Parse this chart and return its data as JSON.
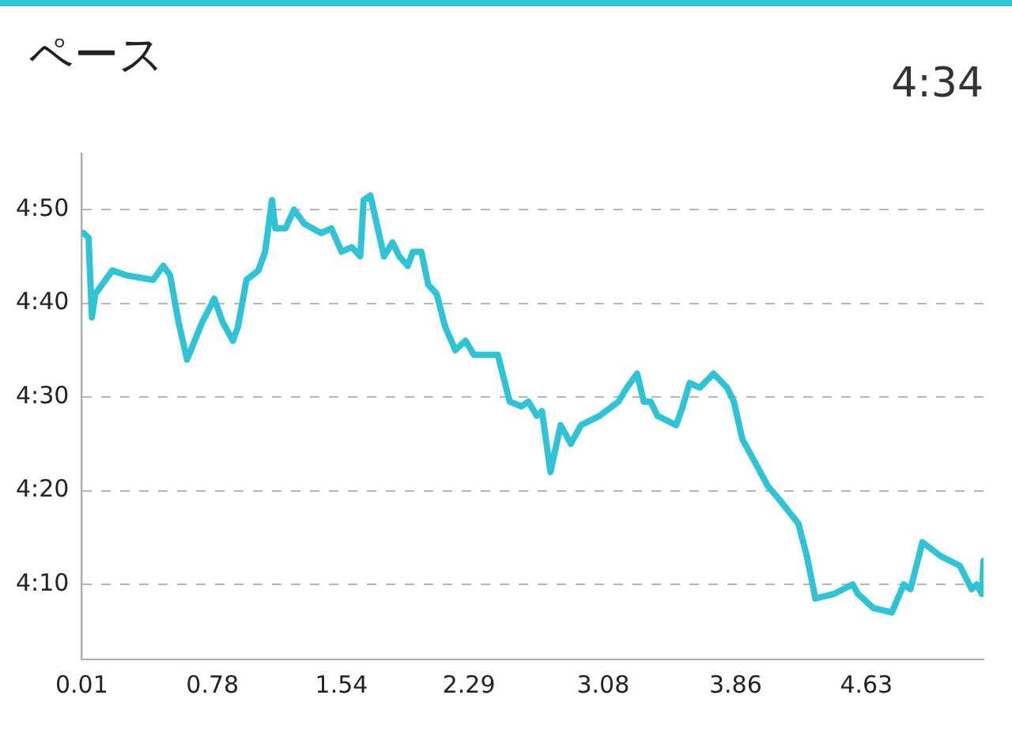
{
  "chart_data": {
    "type": "line",
    "title": "ペース",
    "subtitle": "4:34",
    "x": [
      0.02,
      0.05,
      0.07,
      0.09,
      0.19,
      0.27,
      0.43,
      0.49,
      0.53,
      0.58,
      0.63,
      0.72,
      0.79,
      0.84,
      0.9,
      0.93,
      0.98,
      1.05,
      1.09,
      1.13,
      1.15,
      1.21,
      1.26,
      1.32,
      1.42,
      1.48,
      1.54,
      1.6,
      1.65,
      1.67,
      1.71,
      1.79,
      1.84,
      1.88,
      1.93,
      1.96,
      2.01,
      2.05,
      2.1,
      2.15,
      2.21,
      2.27,
      2.32,
      2.46,
      2.53,
      2.6,
      2.64,
      2.69,
      2.72,
      2.77,
      2.83,
      2.89,
      2.95,
      3.06,
      3.17,
      3.22,
      3.28,
      3.32,
      3.36,
      3.4,
      3.51,
      3.54,
      3.59,
      3.65,
      3.73,
      3.81,
      3.85,
      3.9,
      3.96,
      4.05,
      4.12,
      4.23,
      4.28,
      4.33,
      4.44,
      4.55,
      4.58,
      4.67,
      4.78,
      4.85,
      4.89,
      4.96,
      5.07,
      5.18,
      5.25,
      5.28,
      5.31,
      5.32
    ],
    "series": [
      {
        "color": "#2ec4d6",
        "values": [
          287.5,
          287,
          278.5,
          281,
          283.5,
          283,
          282.5,
          284,
          283,
          278,
          274,
          278,
          280.5,
          278,
          276,
          277.5,
          282.5,
          283.5,
          285.5,
          291,
          288,
          288,
          290,
          288.5,
          287.5,
          288,
          285.5,
          286,
          285,
          291,
          291.5,
          285,
          286.5,
          285,
          284,
          285.5,
          285.5,
          282,
          281,
          277.5,
          275,
          276,
          274.5,
          274.5,
          269.5,
          269,
          269.5,
          268,
          268.5,
          262,
          267,
          265,
          267,
          268,
          269.5,
          271,
          272.5,
          269.5,
          269.5,
          268,
          267,
          268.5,
          271.5,
          271,
          272.5,
          271,
          269.5,
          265.5,
          263.5,
          260.5,
          259,
          256.5,
          253,
          248.5,
          249,
          250,
          249,
          247.5,
          247,
          250,
          249.5,
          254.5,
          253,
          252,
          249.5,
          250,
          249,
          252.5
        ]
      }
    ],
    "xlim": [
      0.01,
      5.32
    ],
    "xticks": [
      0.01,
      0.78,
      1.54,
      2.29,
      3.08,
      3.86,
      4.63
    ],
    "ylim": [
      242,
      296
    ],
    "yticks": [
      {
        "value": 250,
        "label": "4:10"
      },
      {
        "value": 260,
        "label": "4:20"
      },
      {
        "value": 270,
        "label": "4:30"
      },
      {
        "value": 280,
        "label": "4:40"
      },
      {
        "value": 290,
        "label": "4:50"
      }
    ],
    "grid": "y"
  }
}
